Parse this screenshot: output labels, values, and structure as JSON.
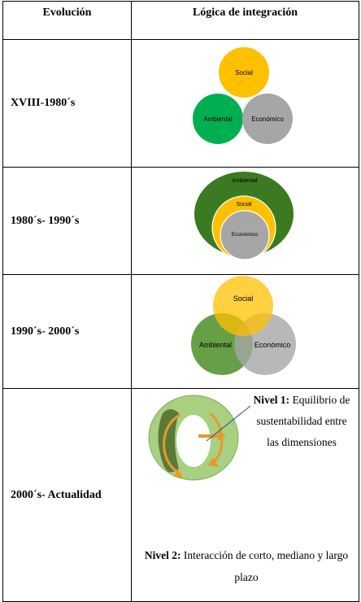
{
  "table": {
    "headers": [
      "Evolución",
      "Lógica de integración"
    ],
    "rows": [
      {
        "period": "XVIII-1980´s",
        "circles": [
          "Social",
          "Ambiental",
          "Económico"
        ]
      },
      {
        "period": "1980´s- 1990´s",
        "circles": [
          "Ambiental",
          "Social",
          "Económico"
        ]
      },
      {
        "period": "1990´s- 2000´s",
        "circles": [
          "Social",
          "Ambiental",
          "Económico"
        ]
      },
      {
        "period": "2000´s- Actualidad",
        "level1": {
          "label": "Nivel 1:",
          "text": "Equilibrio de sustentabilidad entre las dimensiones"
        },
        "level2": {
          "label": "Nivel 2:",
          "text": "Interacción de corto, mediano y largo plazo"
        }
      }
    ]
  },
  "colors": {
    "social": "#ffc000",
    "ambiental": "#00b050",
    "economico": "#a6a6a6",
    "ambiental_dark": "#3c7a22",
    "ambiental_soft": "#5e9a3c",
    "torus": "#a8d080",
    "arrow": "#e69a2e"
  }
}
